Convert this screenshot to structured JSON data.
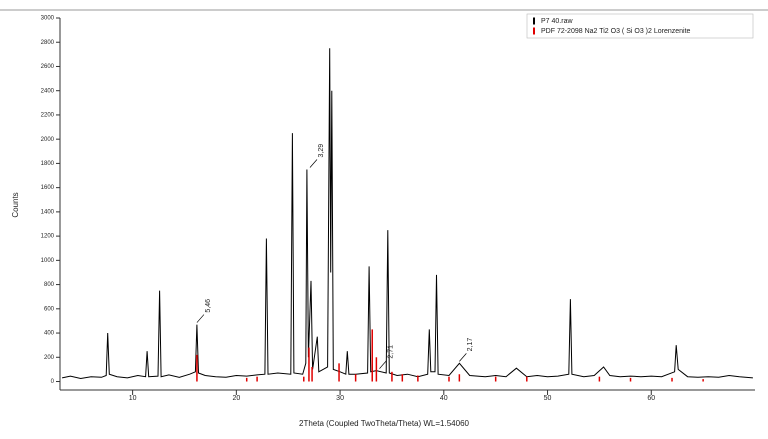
{
  "chart_data": {
    "type": "line",
    "xlabel": "2Theta (Coupled TwoTheta/Theta) WL=1.54060",
    "ylabel": "Counts",
    "xlim": [
      3,
      70
    ],
    "ylim": [
      -70,
      3000
    ],
    "xticks": [
      10,
      20,
      30,
      40,
      50,
      60
    ],
    "yticks": [
      0,
      200,
      400,
      600,
      800,
      1000,
      1200,
      1400,
      1600,
      1800,
      2000,
      2200,
      2400,
      2600,
      2800,
      3000
    ],
    "legend": "top-right",
    "series": [
      {
        "name": "P7 40.raw",
        "color": "#000000",
        "kind": "line",
        "x": [
          3.2,
          4,
          5,
          6,
          7,
          7.45,
          7.6,
          7.75,
          8.5,
          9.5,
          10.5,
          11.25,
          11.4,
          11.55,
          12.45,
          12.6,
          12.75,
          13.5,
          14.5,
          15.5,
          16.05,
          16.2,
          16.35,
          17,
          18,
          19,
          20,
          21,
          22,
          22.75,
          22.9,
          23.05,
          24,
          25.25,
          25.4,
          25.55,
          26.4,
          26.7,
          26.8,
          26.95,
          27.2,
          27.35,
          27.8,
          27.95,
          28.8,
          29.0,
          29.1,
          29.2,
          29.35,
          30,
          30.55,
          30.7,
          30.85,
          31.5,
          32.65,
          32.8,
          32.95,
          33.5,
          34.45,
          34.6,
          34.75,
          35.5,
          36.5,
          37.5,
          38.45,
          38.6,
          38.75,
          39.15,
          39.3,
          39.45,
          40.5,
          41.5,
          42.5,
          44,
          45,
          46,
          47,
          48,
          49,
          50,
          51,
          52.05,
          52.2,
          52.35,
          53.5,
          54.5,
          55.4,
          56,
          57,
          58,
          59,
          60,
          61,
          62.25,
          62.4,
          62.6,
          63.5,
          64.5,
          65.5,
          66.5,
          67.5,
          68.5,
          69.8
        ],
        "values": [
          30,
          45,
          25,
          40,
          35,
          50,
          400,
          60,
          40,
          30,
          50,
          40,
          250,
          40,
          45,
          750,
          40,
          55,
          35,
          60,
          80,
          470,
          70,
          50,
          40,
          35,
          50,
          45,
          55,
          60,
          1180,
          60,
          70,
          60,
          2050,
          70,
          60,
          150,
          1750,
          200,
          830,
          100,
          370,
          80,
          120,
          2750,
          900,
          2400,
          100,
          80,
          60,
          250,
          60,
          60,
          70,
          950,
          80,
          90,
          70,
          1250,
          70,
          50,
          60,
          40,
          60,
          430,
          80,
          80,
          880,
          60,
          50,
          150,
          50,
          40,
          50,
          40,
          110,
          40,
          50,
          40,
          45,
          60,
          680,
          60,
          40,
          50,
          120,
          50,
          40,
          45,
          40,
          45,
          40,
          80,
          300,
          100,
          40,
          35,
          40,
          35,
          50,
          40,
          30
        ]
      },
      {
        "name": "PDF 72-2098 Na2 Ti2 O3 ( Si O3 )2 Lorenzenite",
        "color": "#e00000",
        "kind": "stick",
        "x": [
          16.2,
          21,
          22,
          26.5,
          27.0,
          27.3,
          29.9,
          31.5,
          33.1,
          33.5,
          35.0,
          36,
          37.5,
          40.5,
          41.5,
          45,
          48,
          55,
          58,
          62,
          65
        ],
        "values": [
          220,
          30,
          40,
          40,
          280,
          120,
          150,
          60,
          430,
          200,
          80,
          60,
          50,
          40,
          60,
          40,
          40,
          40,
          30,
          30,
          20
        ]
      }
    ],
    "annotations": [
      {
        "text": "5,46",
        "x": 16.2
      },
      {
        "text": "3,29",
        "x": 27.1
      },
      {
        "text": "2,71",
        "x": 33.8
      },
      {
        "text": "2,17",
        "x": 41.5
      }
    ]
  }
}
